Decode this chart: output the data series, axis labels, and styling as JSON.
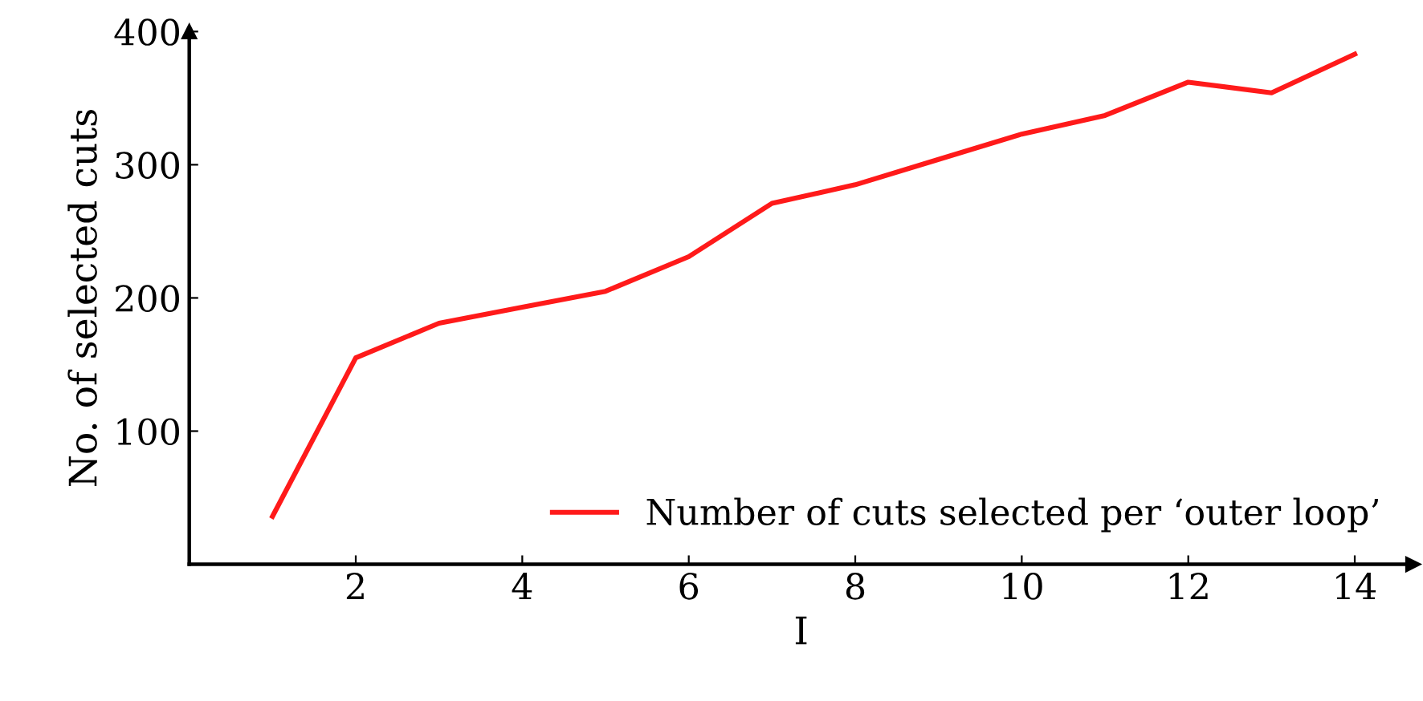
{
  "chart_data": {
    "type": "line",
    "xlabel": "I",
    "ylabel": "No. of selected cuts",
    "x": [
      1,
      2,
      3,
      4,
      5,
      6,
      7,
      8,
      9,
      10,
      11,
      12,
      13,
      14
    ],
    "series": [
      {
        "name": "Number of cuts selected per ‘outer loop’",
        "color": "#ff1a1a",
        "values": [
          36,
          155,
          181,
          193,
          205,
          231,
          271,
          285,
          304,
          323,
          337,
          362,
          354,
          383
        ]
      }
    ],
    "xlim": [
      0,
      14.7
    ],
    "ylim": [
      0,
      400
    ],
    "xticks": [
      2,
      4,
      6,
      8,
      10,
      12,
      14
    ],
    "yticks": [
      100,
      200,
      300,
      400
    ],
    "grid": false,
    "legend": "bottom right",
    "marker": "none",
    "line_style": "solid"
  }
}
